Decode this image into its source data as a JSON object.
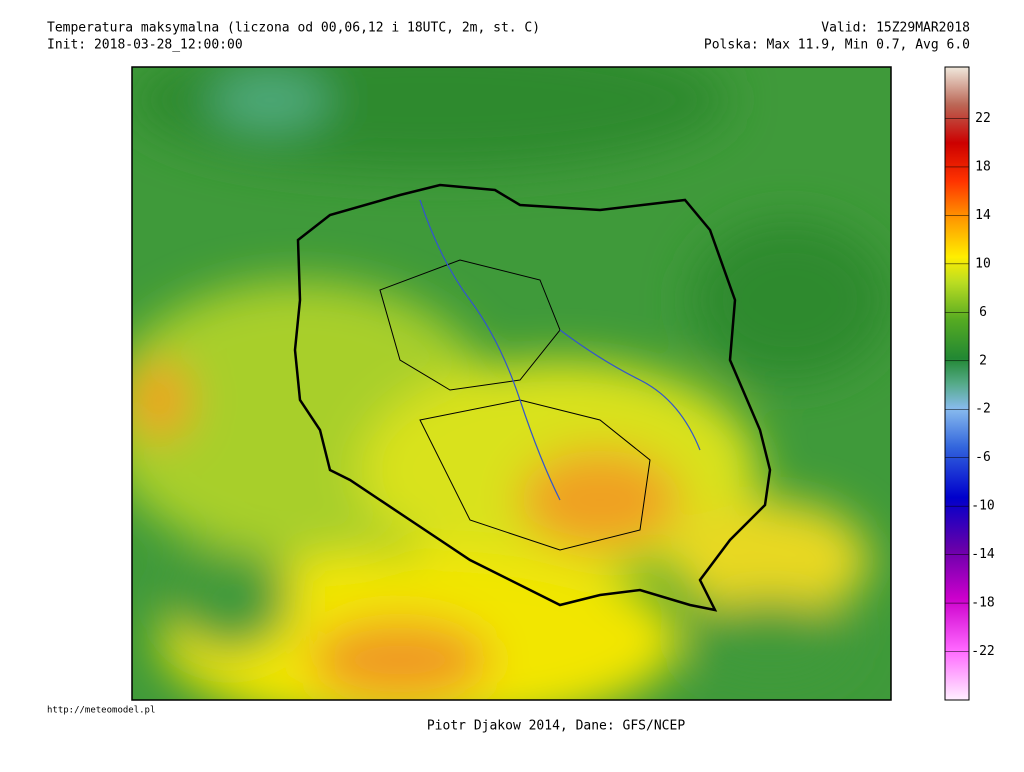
{
  "header": {
    "title": "Temperatura maksymalna (liczona od 00,06,12 i 18UTC, 2m, st. C)",
    "init": "Init: 2018-03-28_12:00:00",
    "valid": "Valid: 15Z29MAR2018",
    "stats": "Polska: Max 11.9, Min  0.7, Avg  6.0"
  },
  "colorbar": {
    "lim": [
      -26,
      26.25
    ],
    "ticks": [
      22,
      18,
      14,
      10,
      6,
      2,
      -2,
      -6,
      -10,
      -14,
      -18,
      -22
    ]
  },
  "footer": {
    "credit": "Piotr Djakow 2014, Dane: GFS/NCEP",
    "url": "http://meteomodel.pl"
  }
}
